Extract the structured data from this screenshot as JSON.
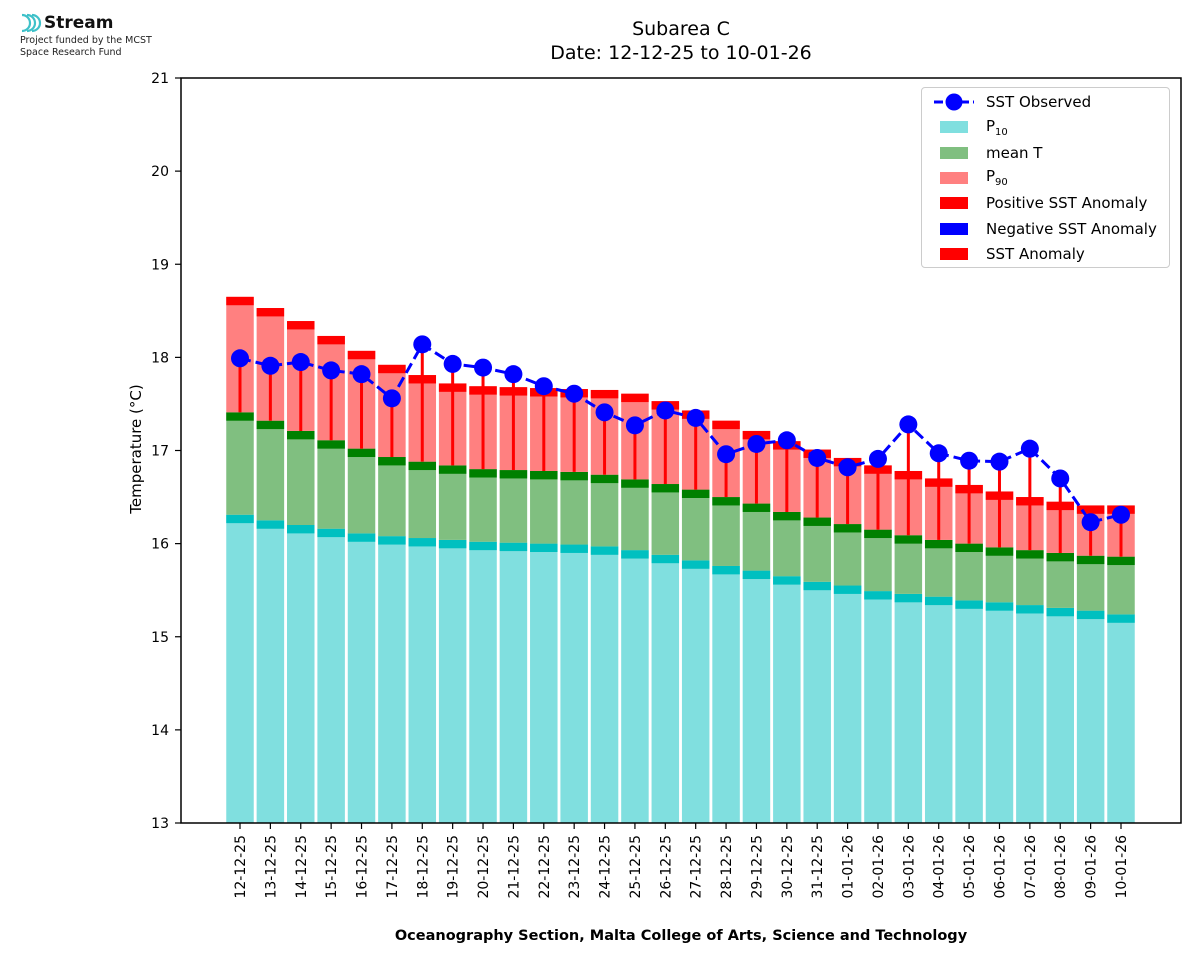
{
  "logo": {
    "name": "Stream",
    "subtitle_line1": "Project funded by the MCST",
    "subtitle_line2": "Space Research Fund",
    "color": "#3fc1c9"
  },
  "chart_data": {
    "type": "bar",
    "title": "Subarea C",
    "subtitle": "Date: 12-12-25 to 10-01-26",
    "xlabel": "Oceanography Section, Malta College of Arts, Science and Technology",
    "ylabel": "Temperature (°C)",
    "ylim": [
      13,
      21
    ],
    "yticks": [
      "13",
      "14",
      "15",
      "16",
      "17",
      "18",
      "19",
      "20",
      "21"
    ],
    "grid": false,
    "legend_position": "top-right",
    "legend": [
      {
        "label": "SST Observed",
        "kind": "line-marker",
        "color": "#0000ff"
      },
      {
        "label": "P",
        "sub": "10",
        "kind": "patch",
        "color": "#80dfdf"
      },
      {
        "label": "mean T",
        "sub": "",
        "kind": "patch",
        "color": "#80bf80"
      },
      {
        "label": "P",
        "sub": "90",
        "kind": "patch",
        "color": "#ff8080"
      },
      {
        "label": "Positive SST Anomaly",
        "kind": "patch",
        "color": "#ff0000"
      },
      {
        "label": "Negative SST Anomaly",
        "kind": "patch",
        "color": "#0000ff"
      },
      {
        "label": "SST Anomaly",
        "kind": "patch",
        "color": "#ff0000"
      }
    ],
    "colors": {
      "p10": "#80dfdf",
      "p10_edge": "#00c0c0",
      "mean": "#80bf80",
      "mean_edge": "#008000",
      "p90": "#ff8080",
      "p90_edge": "#ff0000",
      "observed": "#0000ff",
      "anomaly_line": "#ff0000"
    },
    "categories": [
      "12-12-25",
      "13-12-25",
      "14-12-25",
      "15-12-25",
      "16-12-25",
      "17-12-25",
      "18-12-25",
      "19-12-25",
      "20-12-25",
      "21-12-25",
      "22-12-25",
      "23-12-25",
      "24-12-25",
      "25-12-25",
      "26-12-25",
      "27-12-25",
      "28-12-25",
      "29-12-25",
      "30-12-25",
      "31-12-25",
      "01-01-26",
      "02-01-26",
      "03-01-26",
      "04-01-26",
      "05-01-26",
      "06-01-26",
      "07-01-26",
      "08-01-26",
      "09-01-26",
      "10-01-26"
    ],
    "series": [
      {
        "name": "P10",
        "values": [
          16.31,
          16.25,
          16.2,
          16.16,
          16.11,
          16.08,
          16.06,
          16.04,
          16.02,
          16.01,
          16.0,
          15.99,
          15.97,
          15.93,
          15.88,
          15.82,
          15.76,
          15.71,
          15.65,
          15.59,
          15.55,
          15.49,
          15.46,
          15.43,
          15.39,
          15.37,
          15.34,
          15.31,
          15.28,
          15.24
        ]
      },
      {
        "name": "mean T",
        "values": [
          17.41,
          17.32,
          17.21,
          17.11,
          17.02,
          16.93,
          16.88,
          16.84,
          16.8,
          16.79,
          16.78,
          16.77,
          16.74,
          16.69,
          16.64,
          16.58,
          16.5,
          16.43,
          16.34,
          16.28,
          16.21,
          16.15,
          16.09,
          16.04,
          16.0,
          15.96,
          15.93,
          15.9,
          15.87,
          15.86
        ]
      },
      {
        "name": "P90",
        "values": [
          18.65,
          18.53,
          18.39,
          18.23,
          18.07,
          17.92,
          17.81,
          17.72,
          17.69,
          17.68,
          17.67,
          17.66,
          17.65,
          17.61,
          17.53,
          17.43,
          17.32,
          17.21,
          17.1,
          17.01,
          16.92,
          16.84,
          16.78,
          16.7,
          16.63,
          16.56,
          16.5,
          16.45,
          16.41,
          16.41
        ]
      },
      {
        "name": "SST Observed",
        "values": [
          17.99,
          17.91,
          17.95,
          17.86,
          17.82,
          17.56,
          18.14,
          17.93,
          17.89,
          17.82,
          17.69,
          17.61,
          17.41,
          17.27,
          17.43,
          17.35,
          16.96,
          17.07,
          17.11,
          16.92,
          16.82,
          16.91,
          17.28,
          16.97,
          16.89,
          16.88,
          17.02,
          16.7,
          16.23,
          16.31
        ]
      }
    ]
  }
}
